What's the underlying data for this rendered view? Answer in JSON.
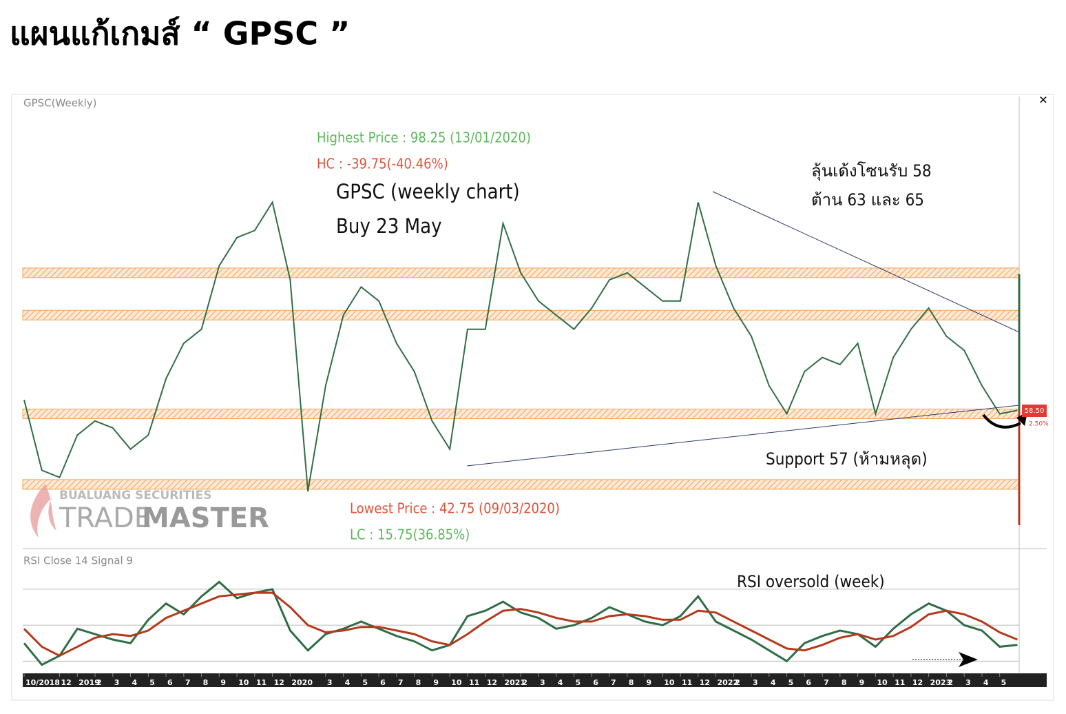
{
  "page_title": "แผนแก้เกมส์ “ GPSC ”",
  "chart_data": [
    {
      "type": "line",
      "panel_title": "GPSC(Weekly)",
      "x": [
        0,
        1,
        2,
        3,
        4,
        5,
        6,
        7,
        8,
        9,
        10,
        11,
        12,
        13,
        14,
        15,
        16,
        17,
        18,
        19,
        20,
        21,
        22,
        23,
        24,
        25,
        26,
        27,
        28,
        29,
        30,
        31,
        32,
        33,
        34,
        35,
        36,
        37,
        38,
        39,
        40,
        41,
        42,
        43,
        44,
        45,
        46,
        47,
        48,
        49,
        50,
        51,
        52,
        53,
        54,
        55,
        56
      ],
      "xlim": [
        0,
        56.1
      ],
      "ylim": [
        39,
        103
      ],
      "series": [
        {
          "color": "#2f6e45",
          "values": [
            60,
            50,
            49,
            55,
            57,
            56,
            53,
            55,
            63,
            68,
            70,
            79,
            83,
            84,
            88,
            77,
            47,
            62,
            72,
            76,
            74,
            68,
            64,
            57,
            53,
            70,
            70,
            85,
            78,
            74,
            72,
            70,
            73,
            77,
            78,
            76,
            74,
            74,
            88,
            79,
            73,
            69,
            62,
            58,
            64,
            66,
            65,
            68,
            58,
            66,
            70,
            73,
            69,
            67,
            62,
            58,
            58.5
          ]
        }
      ],
      "zones": [
        78,
        72,
        58,
        48
      ],
      "last_value": 58.5,
      "last_value_label": "58.50",
      "change_label": "2.50%",
      "annotations": [
        "Highest Price : 98.25 (13/01/2020)",
        "HC : -39.75(-40.46%)",
        "GPSC (weekly chart)",
        "Buy 23 May",
        "ลุ้นเด้งโซนรับ 58",
        "ต้าน  63 และ 65",
        "Support 57 (ห้ามหลุด)",
        "Lowest Price : 42.75 (09/03/2020)",
        "LC : 15.75(36.85%)"
      ],
      "watermark": [
        "BUALUANG SECURITIES",
        "TRADE",
        "MASTER"
      ]
    },
    {
      "type": "line",
      "panel_title": "RSI Close 14 Signal 9",
      "x": [
        0,
        1,
        2,
        3,
        4,
        5,
        6,
        7,
        8,
        9,
        10,
        11,
        12,
        13,
        14,
        15,
        16,
        17,
        18,
        19,
        20,
        21,
        22,
        23,
        24,
        25,
        26,
        27,
        28,
        29,
        30,
        31,
        32,
        33,
        34,
        35,
        36,
        37,
        38,
        39,
        40,
        41,
        42,
        43,
        44,
        45,
        46,
        47,
        48,
        49,
        50,
        51,
        52,
        53,
        54,
        55,
        56
      ],
      "xlim": [
        0,
        56.1
      ],
      "ylim": [
        24,
        91
      ],
      "levels": [
        30,
        50,
        70
      ],
      "xticks": [
        {
          "value": 0,
          "label": "10/2018"
        },
        {
          "value": 2,
          "label": "12"
        },
        {
          "value": 3,
          "label": "2019"
        },
        {
          "value": 4,
          "label": "2"
        },
        {
          "value": 5,
          "label": "3"
        },
        {
          "value": 6,
          "label": "4"
        },
        {
          "value": 7,
          "label": "5"
        },
        {
          "value": 8,
          "label": "6"
        },
        {
          "value": 9,
          "label": "7"
        },
        {
          "value": 10,
          "label": "8"
        },
        {
          "value": 11,
          "label": "9"
        },
        {
          "value": 12,
          "label": "10"
        },
        {
          "value": 13,
          "label": "11"
        },
        {
          "value": 14,
          "label": "12"
        },
        {
          "value": 15,
          "label": "2020"
        },
        {
          "value": 17,
          "label": "3"
        },
        {
          "value": 18,
          "label": "4"
        },
        {
          "value": 19,
          "label": "5"
        },
        {
          "value": 20,
          "label": "6"
        },
        {
          "value": 21,
          "label": "7"
        },
        {
          "value": 22,
          "label": "8"
        },
        {
          "value": 23,
          "label": "9"
        },
        {
          "value": 24,
          "label": "10"
        },
        {
          "value": 25,
          "label": "11"
        },
        {
          "value": 26,
          "label": "12"
        },
        {
          "value": 27,
          "label": "2021"
        },
        {
          "value": 28,
          "label": "2"
        },
        {
          "value": 29,
          "label": "3"
        },
        {
          "value": 30,
          "label": "4"
        },
        {
          "value": 31,
          "label": "5"
        },
        {
          "value": 32,
          "label": "6"
        },
        {
          "value": 33,
          "label": "7"
        },
        {
          "value": 34,
          "label": "8"
        },
        {
          "value": 35,
          "label": "9"
        },
        {
          "value": 36,
          "label": "10"
        },
        {
          "value": 37,
          "label": "11"
        },
        {
          "value": 38,
          "label": "12"
        },
        {
          "value": 39,
          "label": "2022"
        },
        {
          "value": 40,
          "label": "2"
        },
        {
          "value": 41,
          "label": "3"
        },
        {
          "value": 42,
          "label": "4"
        },
        {
          "value": 43,
          "label": "5"
        },
        {
          "value": 44,
          "label": "6"
        },
        {
          "value": 45,
          "label": "7"
        },
        {
          "value": 46,
          "label": "8"
        },
        {
          "value": 47,
          "label": "9"
        },
        {
          "value": 48,
          "label": "10"
        },
        {
          "value": 49,
          "label": "11"
        },
        {
          "value": 50,
          "label": "12"
        },
        {
          "value": 51,
          "label": "2023"
        },
        {
          "value": 52,
          "label": "2"
        },
        {
          "value": 53,
          "label": "3"
        },
        {
          "value": 54,
          "label": "4"
        },
        {
          "value": 55,
          "label": "5"
        }
      ],
      "series": [
        {
          "color": "#2f6e45",
          "values": [
            40,
            28,
            33,
            48,
            45,
            42,
            40,
            53,
            62,
            56,
            66,
            74,
            65,
            68,
            70,
            47,
            36,
            45,
            48,
            52,
            48,
            44,
            41,
            36,
            39,
            55,
            58,
            63,
            57,
            54,
            48,
            50,
            54,
            60,
            56,
            52,
            50,
            55,
            66,
            52,
            47,
            42,
            36,
            30,
            40,
            44,
            47,
            45,
            38,
            48,
            56,
            62,
            58,
            50,
            47,
            38,
            39
          ]
        },
        {
          "color": "#b5391c",
          "values": [
            48,
            38,
            33,
            38,
            43,
            45,
            44,
            47,
            54,
            58,
            62,
            66,
            67,
            68,
            68,
            60,
            50,
            46,
            47,
            49,
            49,
            47,
            45,
            41,
            39,
            45,
            52,
            58,
            59,
            57,
            54,
            52,
            52,
            55,
            56,
            55,
            53,
            53,
            58,
            57,
            52,
            47,
            42,
            37,
            36,
            39,
            43,
            45,
            42,
            44,
            49,
            56,
            58,
            56,
            52,
            46,
            42
          ]
        }
      ],
      "annotation": "RSI oversold (week)"
    }
  ]
}
